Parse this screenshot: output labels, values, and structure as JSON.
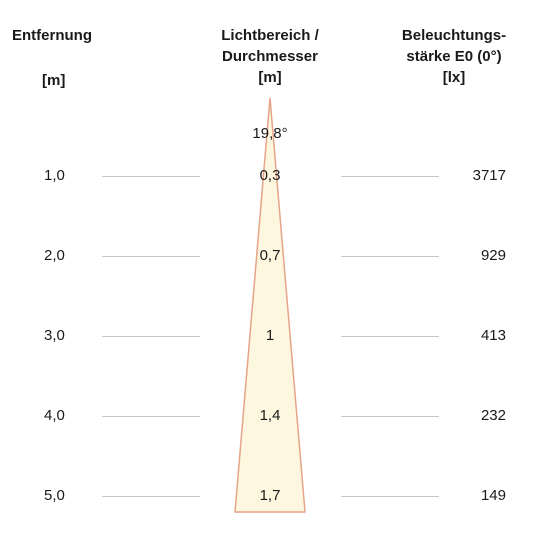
{
  "headers": {
    "distance": {
      "label": "Entfernung",
      "unit": "[m]"
    },
    "diameter": {
      "line1": "Lichtbereich /",
      "line2": "Durchmesser",
      "unit": "[m]"
    },
    "illuminance": {
      "line1": "Beleuchtungs-",
      "line2": "stärke E0 (0°)",
      "unit": "[lx]"
    }
  },
  "beam_angle": "19,8°",
  "colors": {
    "beam_fill": "#fdf7df",
    "beam_stroke": "#e6a48a",
    "divider": "#c8c8c8"
  },
  "rows": [
    {
      "distance": "1,0",
      "diameter": "0,3",
      "lux": "3717"
    },
    {
      "distance": "2,0",
      "diameter": "0,7",
      "lux": "929"
    },
    {
      "distance": "3,0",
      "diameter": "1",
      "lux": "413"
    },
    {
      "distance": "4,0",
      "diameter": "1,4",
      "lux": "232"
    },
    {
      "distance": "5,0",
      "diameter": "1,7",
      "lux": "149"
    }
  ]
}
